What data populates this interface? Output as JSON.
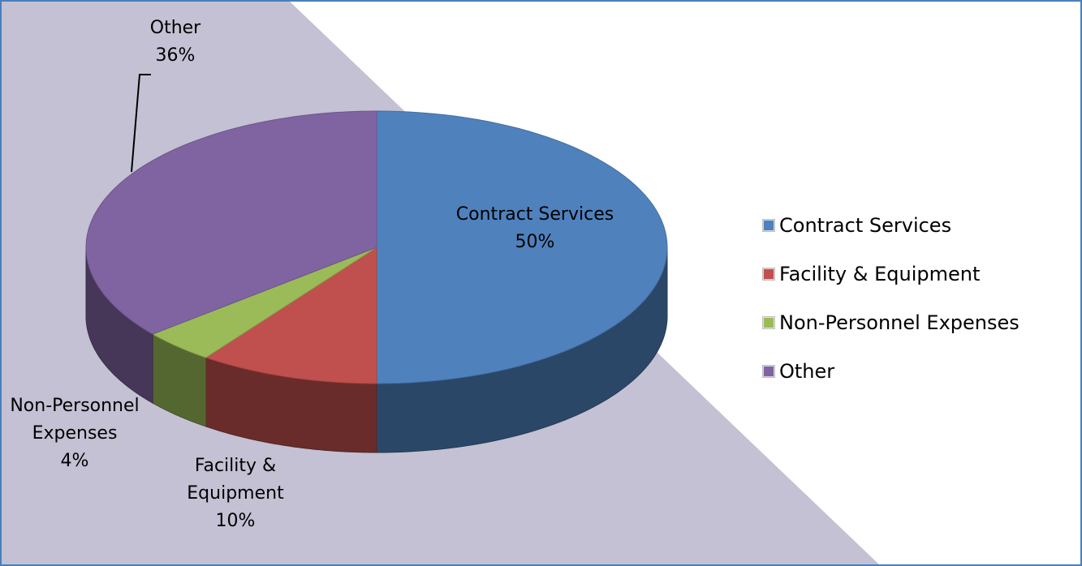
{
  "chart_data": {
    "type": "pie",
    "three_d": true,
    "categories": [
      "Contract Services",
      "Facility & Equipment",
      "Non-Personnel Expenses",
      "Other"
    ],
    "values": [
      50,
      10,
      4,
      36
    ],
    "value_labels": [
      "50%",
      "10%",
      "4%",
      "36%"
    ],
    "colors": [
      "#4f81bd",
      "#c0504d",
      "#9bbb59",
      "#8064a2"
    ],
    "legend": "right"
  }
}
